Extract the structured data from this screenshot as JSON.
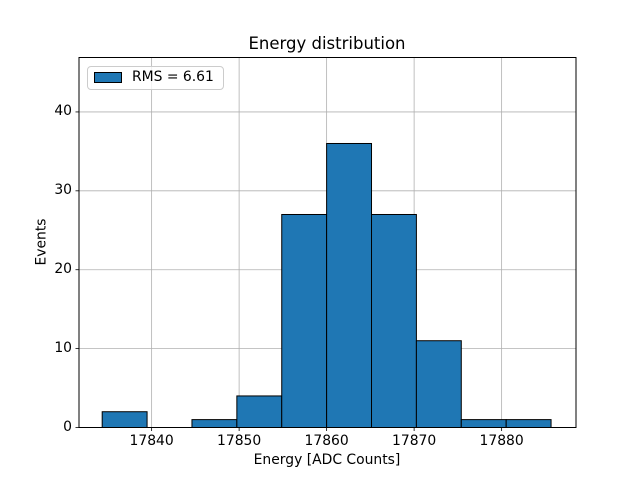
{
  "legend": {
    "label": "RMS = 6.61",
    "swatch_icon": "histogram-series-swatch"
  },
  "chart_data": {
    "type": "bar",
    "subtype": "histogram",
    "title": "Energy distribution",
    "xlabel": "Energy [ADC Counts]",
    "ylabel": "Events",
    "bin_edges": [
      17834.35,
      17839.48,
      17844.61,
      17849.74,
      17854.87,
      17860.0,
      17865.13,
      17870.26,
      17875.39,
      17880.52,
      17885.65
    ],
    "counts": [
      2,
      0,
      1,
      4,
      27,
      36,
      27,
      11,
      1,
      1
    ],
    "total_events": 110,
    "rms": 6.61,
    "xlim": [
      17831.7,
      17888.5
    ],
    "ylim": [
      0,
      46.9
    ],
    "xticks": [
      17840,
      17850,
      17860,
      17870,
      17880
    ],
    "yticks": [
      0,
      10,
      20,
      30,
      40
    ],
    "grid": true,
    "legend_position": "upper left",
    "colors": {
      "bar_fill": "#1f77b4",
      "bar_edge": "#000000",
      "grid": "#b0b0b0",
      "spine": "#000000",
      "tick": "#000000",
      "legend_border": "#cccccc",
      "text": "#000000",
      "background": "#ffffff"
    }
  }
}
